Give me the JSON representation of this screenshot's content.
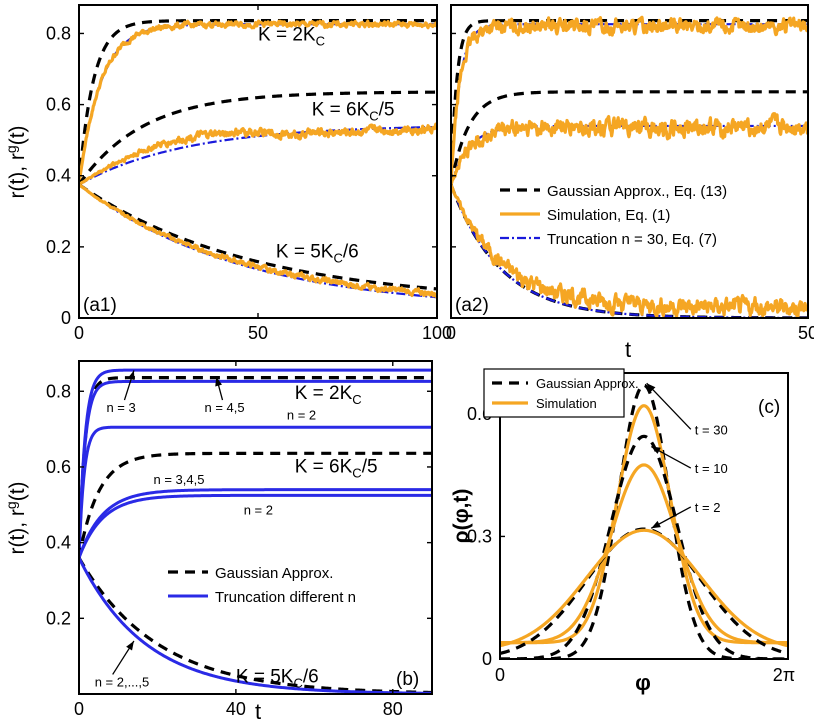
{
  "chart_data": [
    {
      "panel": "(a1)",
      "type": "line",
      "xlim": [
        0,
        100
      ],
      "ylim": [
        0,
        0.88
      ],
      "xticks": [
        "0",
        "50",
        "100"
      ],
      "yticks": [
        "0",
        "0.2",
        "0.4",
        "0.6",
        "0.8"
      ],
      "ylabel": "r(t), r^g(t)",
      "curves": [
        {
          "style": "gauss",
          "r0": 0.375,
          "rinf": 0.836,
          "tau": 4.0
        },
        {
          "style": "trunc",
          "r0": 0.375,
          "rinf": 0.826,
          "tau": 6.0
        },
        {
          "style": "sim",
          "r0": 0.375,
          "rinf": 0.826,
          "tau": 6.0,
          "noise": 0.004
        },
        {
          "style": "gauss",
          "r0": 0.375,
          "rinf": 0.636,
          "tau": 18.0
        },
        {
          "style": "trunc",
          "r0": 0.375,
          "rinf": 0.543,
          "tau": 30.0
        },
        {
          "style": "sim",
          "r0": 0.375,
          "rinf": 0.54,
          "tau": 32.0,
          "noise": 0.006,
          "hump": 0.03
        },
        {
          "style": "gauss",
          "r0": 0.375,
          "rinf": 0.04,
          "tau": 48.0
        },
        {
          "style": "trunc",
          "r0": 0.375,
          "rinf": 0.02,
          "tau": 45.0
        },
        {
          "style": "sim",
          "r0": 0.375,
          "rinf": 0.03,
          "tau": 45.0,
          "noise": 0.004
        }
      ],
      "annotations": [
        {
          "text": "K = 2K",
          "sub": "C",
          "tail": "",
          "x": 50,
          "y": 0.78
        },
        {
          "text": "K = 6K",
          "sub": "C",
          "tail": "/5",
          "x": 65,
          "y": 0.57
        },
        {
          "text": "K = 5K",
          "sub": "C",
          "tail": "/6",
          "x": 55,
          "y": 0.17
        }
      ]
    },
    {
      "panel": "(a2)",
      "type": "line",
      "xlabel": "t",
      "xlim": [
        0,
        50
      ],
      "ylim": [
        0,
        0.88
      ],
      "xticks": [
        "0",
        "50"
      ],
      "curves": [
        {
          "style": "gauss",
          "r0": 0.375,
          "rinf": 0.836,
          "tau": 0.8
        },
        {
          "style": "trunc",
          "r0": 0.375,
          "rinf": 0.826,
          "tau": 1.2
        },
        {
          "style": "sim",
          "r0": 0.375,
          "rinf": 0.82,
          "tau": 1.2,
          "noise": 0.01
        },
        {
          "style": "gauss",
          "r0": 0.375,
          "rinf": 0.636,
          "tau": 2.5
        },
        {
          "style": "trunc",
          "r0": 0.375,
          "rinf": 0.54,
          "tau": 2.5
        },
        {
          "style": "sim",
          "r0": 0.375,
          "rinf": 0.535,
          "tau": 2.5,
          "noise": 0.012
        },
        {
          "style": "gauss",
          "r0": 0.375,
          "rinf": 0.0,
          "tau": 7.0
        },
        {
          "style": "trunc",
          "r0": 0.375,
          "rinf": 0.0,
          "tau": 7.0
        },
        {
          "style": "sim",
          "r0": 0.375,
          "rinf": 0.03,
          "tau": 7.0,
          "noise": 0.012
        }
      ],
      "legend": [
        {
          "style": "gauss",
          "label": "Gaussian Approx., Eq. (13)"
        },
        {
          "style": "sim",
          "label": "Simulation, Eq. (1)"
        },
        {
          "style": "trunc",
          "label": "Truncation n = 30, Eq. (7)"
        }
      ]
    },
    {
      "panel": "(b)",
      "type": "line",
      "xlabel": "t",
      "ylabel": "r(t), r^g(t)",
      "xlim": [
        0,
        90
      ],
      "ylim": [
        0,
        0.88
      ],
      "xticks": [
        "0",
        "40",
        "80"
      ],
      "yticks": [
        "0.2",
        "0.4",
        "0.6",
        "0.8"
      ],
      "curves": [
        {
          "style": "gauss",
          "r0": 0.36,
          "rinf": 0.836,
          "tau": 1.5
        },
        {
          "style": "blue",
          "r0": 0.36,
          "rinf": 0.856,
          "tau": 1.5
        },
        {
          "style": "blue",
          "r0": 0.36,
          "rinf": 0.826,
          "tau": 1.5
        },
        {
          "style": "blue",
          "r0": 0.36,
          "rinf": 0.705,
          "tau": 1.5,
          "overshoot": 0.02
        },
        {
          "style": "gauss",
          "r0": 0.36,
          "rinf": 0.636,
          "tau": 5.0
        },
        {
          "style": "blue",
          "r0": 0.36,
          "rinf": 0.54,
          "tau": 6.0
        },
        {
          "style": "blue",
          "r0": 0.36,
          "rinf": 0.525,
          "tau": 6.0
        },
        {
          "style": "gauss",
          "r0": 0.36,
          "rinf": 0.0,
          "tau": 20.0
        },
        {
          "style": "blue",
          "r0": 0.36,
          "rinf": 0.0,
          "tau": 17.0
        }
      ],
      "annotations": [
        {
          "text": "K = 2K",
          "sub": "C",
          "tail": "",
          "x": 55,
          "y": 0.78
        },
        {
          "text": "K = 6K",
          "sub": "C",
          "tail": "/5",
          "x": 55,
          "y": 0.585
        },
        {
          "text": "K = 5K",
          "sub": "C",
          "tail": "/6",
          "x": 40,
          "y": 0.03
        }
      ],
      "labels": [
        {
          "text": "n = 3",
          "x": 7,
          "y": 0.745,
          "arrow_to": [
            14,
            0.855
          ]
        },
        {
          "text": "n = 4,5",
          "x": 32,
          "y": 0.745,
          "arrow_to": [
            35,
            0.838
          ]
        },
        {
          "text": "n = 2",
          "x": 53,
          "y": 0.725
        },
        {
          "text": "n = 3,4,5",
          "x": 19,
          "y": 0.555
        },
        {
          "text": "n = 2",
          "x": 42,
          "y": 0.475
        },
        {
          "text": "n = 2,...,5",
          "x": 4,
          "y": 0.02,
          "arrow_to": [
            14,
            0.14
          ]
        }
      ],
      "legend": [
        {
          "style": "gauss",
          "label": "Gaussian Approx."
        },
        {
          "style": "blue",
          "label": "Truncation different n"
        }
      ]
    },
    {
      "panel": "(c)",
      "type": "line",
      "xlabel": "φ",
      "ylabel": "ρ(φ,t)",
      "xlim": [
        0,
        6.283
      ],
      "ylim": [
        0,
        0.7
      ],
      "xticks": [
        "0",
        "2π"
      ],
      "yticks": [
        "0",
        "0.3",
        "0.6"
      ],
      "curves": [
        {
          "style": "gauss",
          "mu": 3.14,
          "sigma": 0.55,
          "base": 0.0,
          "peak": 0.67
        },
        {
          "style": "sim",
          "mu": 3.14,
          "sigma": 0.58,
          "base": 0.04,
          "peak": 0.62
        },
        {
          "style": "gauss",
          "mu": 3.14,
          "sigma": 0.72,
          "base": 0.0,
          "peak": 0.545
        },
        {
          "style": "sim",
          "mu": 3.14,
          "sigma": 0.72,
          "base": 0.04,
          "peak": 0.475
        },
        {
          "style": "gauss",
          "mu": 3.14,
          "sigma": 1.25,
          "base": 0.0,
          "peak": 0.318
        },
        {
          "style": "sim",
          "mu": 3.14,
          "sigma": 1.25,
          "base": 0.02,
          "peak": 0.315
        }
      ],
      "labels": [
        {
          "text": "t = 30",
          "x": 4.25,
          "y": 0.55,
          "arrow_to": [
            3.2,
            0.675
          ]
        },
        {
          "text": "t = 10",
          "x": 4.25,
          "y": 0.455,
          "arrow_to": [
            3.3,
            0.52
          ]
        },
        {
          "text": "t = 2",
          "x": 4.25,
          "y": 0.36,
          "arrow_to": [
            3.3,
            0.32
          ]
        }
      ],
      "legend": [
        {
          "style": "gauss",
          "label": "Gaussian Approx."
        },
        {
          "style": "sim",
          "label": "Simulation"
        }
      ]
    }
  ],
  "colors": {
    "gauss": "#000000",
    "sim": "#f5a623",
    "trunc": "#1a1adb",
    "blue": "#2a2ae6"
  }
}
